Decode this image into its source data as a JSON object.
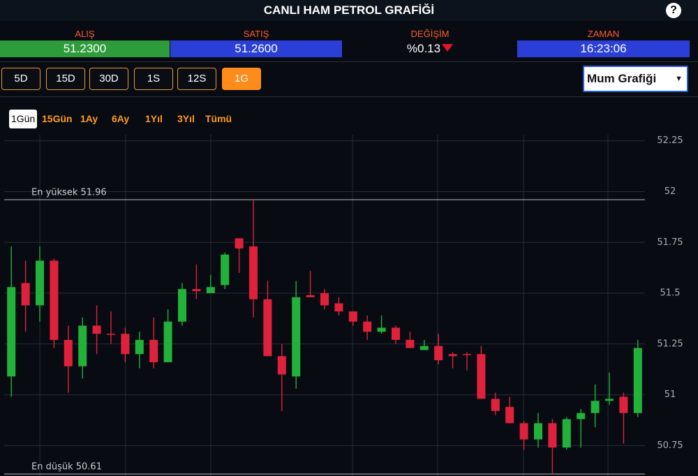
{
  "header": {
    "title": "CANLI HAM PETROL GRAFİĞİ",
    "help": "?"
  },
  "quotes": [
    {
      "label": "ALIŞ",
      "value": "51.2300"
    },
    {
      "label": "SATIŞ",
      "value": "51.2600"
    },
    {
      "label": "DEĞİŞİM",
      "value": "%0.13"
    },
    {
      "label": "ZAMAN",
      "value": "16:23:06"
    }
  ],
  "intervals": {
    "buttons": [
      "5D",
      "15D",
      "30D",
      "1S",
      "12S",
      "1G"
    ],
    "active": 5
  },
  "chart_style": "Mum Grafiği",
  "ranges": {
    "tabs": [
      "1Gün",
      "15Gün",
      "1Ay",
      "6Ay",
      "1Yıl",
      "3Yıl",
      "Tümü"
    ],
    "active": 0
  },
  "chart_data": {
    "type": "candlestick",
    "open": [
      51.09,
      51.55,
      51.44,
      51.66,
      51.27,
      51.14,
      51.34,
      51.3,
      51.3,
      51.2,
      51.27,
      51.16,
      51.36,
      51.52,
      51.5,
      51.54,
      51.77,
      51.73,
      51.47,
      51.19,
      51.09,
      51.49,
      51.5,
      51.45,
      51.41,
      51.36,
      51.31,
      51.33,
      51.27,
      51.22,
      51.24,
      51.2,
      51.2,
      51.2,
      50.98,
      50.94,
      50.86,
      50.78,
      50.86,
      50.74,
      50.88,
      50.91,
      50.97,
      50.99,
      50.91
    ],
    "high": [
      51.73,
      51.66,
      51.73,
      51.67,
      51.34,
      51.38,
      51.44,
      51.41,
      51.33,
      51.31,
      51.38,
      51.42,
      51.55,
      51.64,
      51.59,
      51.7,
      51.77,
      51.96,
      51.56,
      51.25,
      51.56,
      51.61,
      51.52,
      51.48,
      51.41,
      51.39,
      51.39,
      51.34,
      51.31,
      51.27,
      51.3,
      51.21,
      51.21,
      51.24,
      51.01,
      50.99,
      50.87,
      50.91,
      50.88,
      50.89,
      50.93,
      51.05,
      51.11,
      51.01,
      51.27
    ],
    "low": [
      50.99,
      51.31,
      51.36,
      51.23,
      51.01,
      51.08,
      51.2,
      51.25,
      51.16,
      51.13,
      51.13,
      51.16,
      51.34,
      51.47,
      51.5,
      51.52,
      51.6,
      51.38,
      51.19,
      50.92,
      51.03,
      51.48,
      51.42,
      51.39,
      51.34,
      51.27,
      51.3,
      51.25,
      51.23,
      51.22,
      51.15,
      51.13,
      51.12,
      50.98,
      50.9,
      50.86,
      50.73,
      50.74,
      50.61,
      50.73,
      50.74,
      50.84,
      50.95,
      50.76,
      50.89
    ],
    "close": [
      51.53,
      51.44,
      51.66,
      51.27,
      51.14,
      51.34,
      51.3,
      51.3,
      51.2,
      51.27,
      51.16,
      51.36,
      51.52,
      51.51,
      51.53,
      51.69,
      51.72,
      51.47,
      51.19,
      51.1,
      51.48,
      51.48,
      51.44,
      51.41,
      51.36,
      51.31,
      51.33,
      51.27,
      51.23,
      51.24,
      51.17,
      51.19,
      51.2,
      50.98,
      50.92,
      50.86,
      50.78,
      50.86,
      50.74,
      50.88,
      50.91,
      50.97,
      50.98,
      50.91,
      51.23
    ],
    "up_color": "#22b13a",
    "down_color": "#e0213b",
    "ylim": [
      50.6,
      52.28
    ],
    "yticks": [
      50.75,
      51,
      51.25,
      51.5,
      51.75,
      52,
      52.25
    ],
    "grid": true,
    "annotations": [
      {
        "text": "En yüksek 51.96",
        "value": 51.96
      },
      {
        "text": "En düşük 50.61",
        "value": 50.61
      }
    ]
  }
}
